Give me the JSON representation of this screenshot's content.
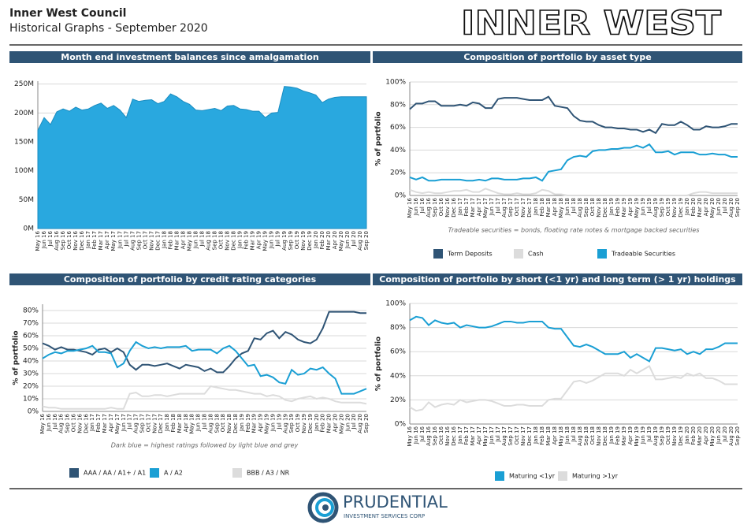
{
  "header": {
    "title": "Inner West Council",
    "subtitle": "Historical Graphs - September 2020",
    "logo": "INNER WEST"
  },
  "footer": {
    "brand": "PRUDENTIAL",
    "tagline": "INVESTMENT SERVICES CORP"
  },
  "chart_data": [
    {
      "type": "area",
      "title": "Month end investment balances since amalgamation",
      "color": "#29a8df",
      "grid": true,
      "categories": [
        "May 16",
        "Jun 16",
        "Jul 16",
        "Aug 16",
        "Sep 16",
        "Oct 16",
        "Nov 16",
        "Dec 16",
        "Jan 17",
        "Feb 17",
        "Mar 17",
        "Apr 17",
        "May 17",
        "Jun 17",
        "Jul 17",
        "Aug 17",
        "Sep 17",
        "Oct 17",
        "Nov 17",
        "Dec 17",
        "Jan 18",
        "Feb 18",
        "Mar 18",
        "Apr 18",
        "May 18",
        "Jun 18",
        "Jul 18",
        "Aug 18",
        "Sep 18",
        "Oct 18",
        "Nov 18",
        "Dec 18",
        "Jan 19",
        "Feb 19",
        "Mar 19",
        "Apr 19",
        "May 19",
        "Jun 19",
        "Jul 19",
        "Aug 19",
        "Sep 19",
        "Oct 19",
        "Nov 19",
        "Dec 19",
        "Jan 20",
        "Feb 20",
        "Mar 20",
        "Apr 20",
        "May 20",
        "Jun 20",
        "Jul 20",
        "Aug 20",
        "Sep 20"
      ],
      "values": [
        170,
        192,
        180,
        202,
        207,
        203,
        210,
        205,
        207,
        213,
        217,
        208,
        213,
        205,
        192,
        224,
        220,
        222,
        223,
        216,
        220,
        233,
        228,
        220,
        215,
        205,
        204,
        206,
        208,
        204,
        212,
        213,
        207,
        206,
        203,
        203,
        192,
        200,
        201,
        246,
        245,
        243,
        238,
        235,
        231,
        218,
        224,
        227,
        228,
        228,
        228,
        228,
        228
      ],
      "ylim": [
        0,
        255
      ],
      "yticks": [
        {
          "value": 0,
          "label": "0M"
        },
        {
          "value": 50,
          "label": "50M"
        },
        {
          "value": 100,
          "label": "100M"
        },
        {
          "value": 150,
          "label": "150M"
        },
        {
          "value": 200,
          "label": "200M"
        },
        {
          "value": 250,
          "label": "250M"
        }
      ]
    },
    {
      "type": "line",
      "title": "Composition of portfolio by asset type",
      "y_label": "% of portfolio",
      "note": "Tradeable securities = bonds, floating rate notes & mortgage backed securities",
      "grid": true,
      "categories": [
        "May 16",
        "Jun 16",
        "Jul 16",
        "Aug 16",
        "Sep 16",
        "Oct 16",
        "Nov 16",
        "Dec 16",
        "Jan 17",
        "Feb 17",
        "Mar 17",
        "Apr 17",
        "May 17",
        "Jun 17",
        "Jul 17",
        "Aug 17",
        "Sep 17",
        "Oct 17",
        "Nov 17",
        "Dec 17",
        "Jan 18",
        "Feb 18",
        "Mar 18",
        "Apr 18",
        "May 18",
        "Jun 18",
        "Jul 18",
        "Aug 18",
        "Sep 18",
        "Oct 18",
        "Nov 18",
        "Dec 18",
        "Jan 19",
        "Feb 19",
        "Mar 19",
        "Apr 19",
        "May 19",
        "Jun 19",
        "Jul 19",
        "Aug 19",
        "Sep 19",
        "Oct 19",
        "Nov 19",
        "Dec 19",
        "Jan 20",
        "Feb 20",
        "Mar 20",
        "Apr 20",
        "May 20",
        "Jun 20",
        "Jul 20",
        "Aug 20",
        "Sep 20"
      ],
      "series": [
        {
          "name": "Term Deposits",
          "color": "#2f5475",
          "values": [
            76,
            81,
            81,
            83,
            83,
            79,
            79,
            79,
            80,
            79,
            82,
            81,
            77,
            77,
            85,
            86,
            86,
            86,
            85,
            84,
            84,
            84,
            87,
            79,
            78,
            77,
            70,
            66,
            65,
            65,
            62,
            60,
            60,
            59,
            59,
            58,
            58,
            56,
            58,
            55,
            63,
            62,
            62,
            65,
            62,
            58,
            58,
            61,
            60,
            60,
            61,
            63,
            63
          ]
        },
        {
          "name": "Cash",
          "color": "#dcdcdc",
          "values": [
            5,
            3,
            2,
            3,
            2,
            2,
            3,
            4,
            4,
            5,
            3,
            3,
            6,
            4,
            2,
            1,
            1,
            2,
            1,
            1,
            2,
            5,
            4,
            1,
            1,
            0,
            0,
            0,
            0,
            0,
            0,
            0,
            0,
            0,
            0,
            0,
            0,
            0,
            0,
            0,
            0,
            0,
            0,
            0,
            0,
            2,
            3,
            3,
            2,
            2,
            2,
            2,
            2
          ]
        },
        {
          "name": "Tradeable Securities",
          "color": "#1a9fd4",
          "values": [
            16,
            14,
            16,
            13,
            13,
            14,
            14,
            14,
            14,
            13,
            13,
            14,
            13,
            15,
            15,
            14,
            14,
            14,
            15,
            15,
            16,
            13,
            21,
            22,
            23,
            31,
            34,
            35,
            34,
            39,
            40,
            40,
            41,
            41,
            42,
            42,
            44,
            42,
            45,
            38,
            38,
            39,
            36,
            38,
            38,
            38,
            36,
            36,
            37,
            36,
            36,
            34,
            34
          ]
        }
      ],
      "ylim": [
        0,
        100
      ],
      "yticks": [
        {
          "value": 0,
          "label": "0%"
        },
        {
          "value": 20,
          "label": "20%"
        },
        {
          "value": 40,
          "label": "40%"
        },
        {
          "value": 60,
          "label": "60%"
        },
        {
          "value": 80,
          "label": "80%"
        },
        {
          "value": 100,
          "label": "100%"
        }
      ]
    },
    {
      "type": "line",
      "title": "Composition of portfolio by credit rating categories",
      "y_label": "% of portfolio",
      "note": "Dark blue = highest ratings followed by light blue and grey",
      "grid": true,
      "categories": [
        "May 16",
        "Jun 16",
        "Jul 16",
        "Aug 16",
        "Sep 16",
        "Oct 16",
        "Nov 16",
        "Dec 16",
        "Jan 17",
        "Feb 17",
        "Mar 17",
        "Apr 17",
        "May 17",
        "Jun 17",
        "Jul 17",
        "Aug 17",
        "Sep 17",
        "Oct 17",
        "Nov 17",
        "Dec 17",
        "Jan 18",
        "Feb 18",
        "Mar 18",
        "Apr 18",
        "May 18",
        "Jun 18",
        "Jul 18",
        "Aug 18",
        "Sep 18",
        "Oct 18",
        "Nov 18",
        "Dec 18",
        "Jan 19",
        "Feb 19",
        "Mar 19",
        "Apr 19",
        "May 19",
        "Jun 19",
        "Jul 19",
        "Aug 19",
        "Sep 19",
        "Oct 19",
        "Nov 19",
        "Dec 19",
        "Jan 20",
        "Feb 20",
        "Mar 20",
        "Apr 20",
        "May 20",
        "Jun 20",
        "Jul 20",
        "Aug 20",
        "Sep 20"
      ],
      "series": [
        {
          "name": "AAA / AA / A1+ / A1",
          "color": "#2f5475",
          "values": [
            54,
            52,
            49,
            51,
            49,
            49,
            48,
            47,
            45,
            49,
            50,
            47,
            50,
            47,
            37,
            33,
            37,
            37,
            36,
            37,
            38,
            36,
            34,
            37,
            36,
            35,
            32,
            34,
            31,
            31,
            36,
            42,
            46,
            48,
            58,
            57,
            62,
            64,
            58,
            63,
            61,
            57,
            55,
            54,
            57,
            66,
            79,
            79,
            79,
            79,
            79,
            78,
            78
          ]
        },
        {
          "name": "A / A2",
          "color": "#1a9fd4",
          "values": [
            42,
            45,
            47,
            46,
            48,
            48,
            49,
            50,
            52,
            47,
            47,
            46,
            35,
            38,
            48,
            55,
            52,
            50,
            51,
            50,
            51,
            51,
            51,
            52,
            48,
            49,
            49,
            49,
            46,
            50,
            52,
            48,
            42,
            36,
            37,
            28,
            29,
            27,
            23,
            22,
            33,
            29,
            30,
            34,
            33,
            35,
            30,
            26,
            14,
            14,
            14,
            16,
            18
          ]
        },
        {
          "name": "BBB / A3 / NR",
          "color": "#dcdcdc",
          "values": [
            4,
            3,
            3,
            2,
            2,
            2,
            2,
            2,
            2,
            2,
            2,
            3,
            2,
            2,
            14,
            15,
            12,
            12,
            13,
            13,
            12,
            13,
            14,
            14,
            14,
            14,
            14,
            20,
            19,
            18,
            17,
            17,
            16,
            15,
            14,
            14,
            12,
            13,
            12,
            9,
            8,
            10,
            11,
            12,
            10,
            11,
            10,
            8,
            7,
            7,
            7,
            7,
            6
          ]
        }
      ],
      "ylim": [
        0,
        85
      ],
      "yticks": [
        {
          "value": 0,
          "label": "0%"
        },
        {
          "value": 10,
          "label": "10%"
        },
        {
          "value": 20,
          "label": "20%"
        },
        {
          "value": 30,
          "label": "30%"
        },
        {
          "value": 40,
          "label": "40%"
        },
        {
          "value": 50,
          "label": "50%"
        },
        {
          "value": 60,
          "label": "60%"
        },
        {
          "value": 70,
          "label": "70%"
        },
        {
          "value": 80,
          "label": "80%"
        }
      ]
    },
    {
      "type": "line",
      "title": "Composition of portfolio by short (<1 yr) and long term (> 1 yr) holdings",
      "y_label": "% of portfolio",
      "grid": true,
      "categories": [
        "May 16",
        "Jun 16",
        "Jul 16",
        "Aug 16",
        "Sep 16",
        "Oct 16",
        "Nov 16",
        "Dec 16",
        "Jan 17",
        "Feb 17",
        "Mar 17",
        "Apr 17",
        "May 17",
        "Jun 17",
        "Jul 17",
        "Aug 17",
        "Sep 17",
        "Oct 17",
        "Nov 17",
        "Dec 17",
        "Jan 18",
        "Feb 18",
        "Mar 18",
        "Apr 18",
        "May 18",
        "Jun 18",
        "Jul 18",
        "Aug 18",
        "Sep 18",
        "Oct 18",
        "Nov 18",
        "Dec 18",
        "Jan 19",
        "Feb 19",
        "Mar 19",
        "Apr 19",
        "May 19",
        "Jun 19",
        "Jul 19",
        "Aug 19",
        "Sep 19",
        "Oct 19",
        "Nov 19",
        "Dec 19",
        "Jan 20",
        "Feb 20",
        "Mar 20",
        "Apr 20",
        "May 20",
        "Jun 20",
        "Jul 20",
        "Aug 20",
        "Sep 20"
      ],
      "series": [
        {
          "name": "Maturing <1yr",
          "color": "#1a9fd4",
          "values": [
            86,
            89,
            88,
            82,
            86,
            84,
            83,
            84,
            80,
            82,
            81,
            80,
            80,
            81,
            83,
            85,
            85,
            84,
            84,
            85,
            85,
            85,
            80,
            79,
            79,
            72,
            65,
            64,
            66,
            64,
            61,
            58,
            58,
            58,
            60,
            55,
            58,
            55,
            52,
            63,
            63,
            62,
            61,
            62,
            58,
            60,
            58,
            62,
            62,
            64,
            67,
            67,
            67
          ]
        },
        {
          "name": "Maturing >1yr",
          "color": "#dcdcdc",
          "values": [
            14,
            11,
            12,
            18,
            14,
            16,
            17,
            16,
            20,
            18,
            19,
            20,
            20,
            19,
            17,
            15,
            15,
            16,
            16,
            15,
            15,
            15,
            20,
            21,
            21,
            28,
            35,
            36,
            34,
            36,
            39,
            42,
            42,
            42,
            40,
            45,
            42,
            45,
            48,
            37,
            37,
            38,
            39,
            38,
            42,
            40,
            42,
            38,
            38,
            36,
            33,
            33,
            33
          ]
        }
      ],
      "ylim": [
        0,
        100
      ],
      "yticks": [
        {
          "value": 0,
          "label": "0%"
        },
        {
          "value": 20,
          "label": "20%"
        },
        {
          "value": 40,
          "label": "40%"
        },
        {
          "value": 60,
          "label": "60%"
        },
        {
          "value": 80,
          "label": "80%"
        },
        {
          "value": 100,
          "label": "100%"
        }
      ]
    }
  ]
}
